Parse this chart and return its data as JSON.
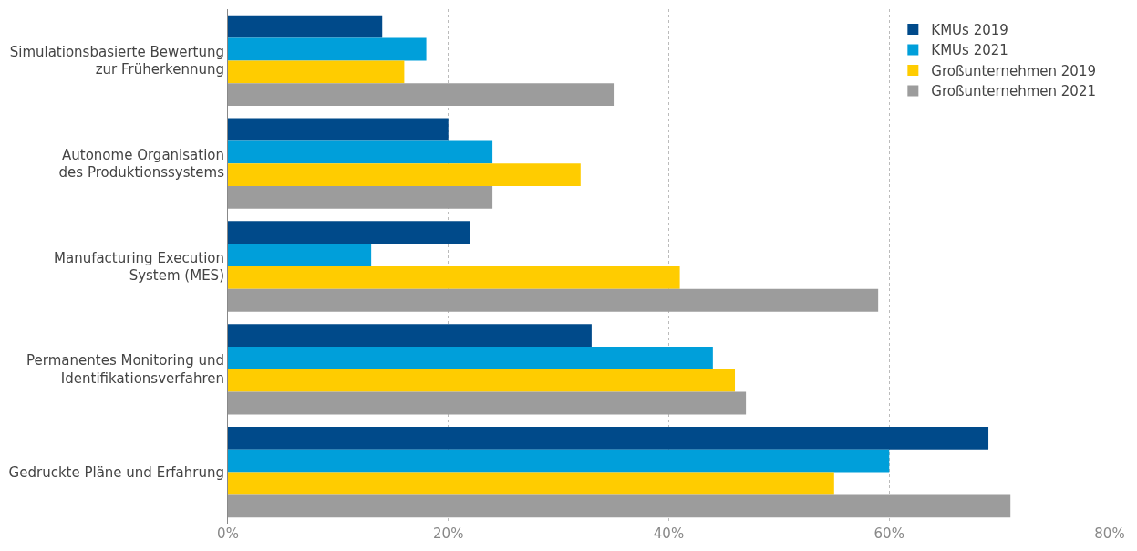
{
  "chart_data": {
    "type": "bar",
    "orientation": "horizontal",
    "categories": [
      "Simulationsbasierte Bewertung\nzur Früherkennung",
      "Autonome Organisation\ndes Produktionssystems",
      "Manufacturing Execution\nSystem (MES)",
      "Permanentes Monitoring und\nIdentifikationsverfahren",
      "Gedruckte Pläne und Erfahrung"
    ],
    "series": [
      {
        "name": "KMUs 2019",
        "color": "#004a8a",
        "values": [
          14,
          20,
          22,
          33,
          69
        ]
      },
      {
        "name": "KMUs 2021",
        "color": "#009fda",
        "values": [
          18,
          24,
          13,
          44,
          60
        ]
      },
      {
        "name": "Großunternehmen 2019",
        "color": "#ffcc00",
        "values": [
          16,
          32,
          41,
          46,
          55
        ]
      },
      {
        "name": "Großunternehmen 2021",
        "color": "#9c9c9c",
        "values": [
          35,
          24,
          59,
          47,
          71
        ]
      }
    ],
    "xlim": [
      0,
      80
    ],
    "xticks": [
      {
        "value": 0,
        "label": "0%"
      },
      {
        "value": 20,
        "label": "20%"
      },
      {
        "value": 40,
        "label": "40%"
      },
      {
        "value": 60,
        "label": "60%"
      },
      {
        "value": 80,
        "label": "80%"
      }
    ],
    "grid": "x",
    "legend": "top right"
  }
}
